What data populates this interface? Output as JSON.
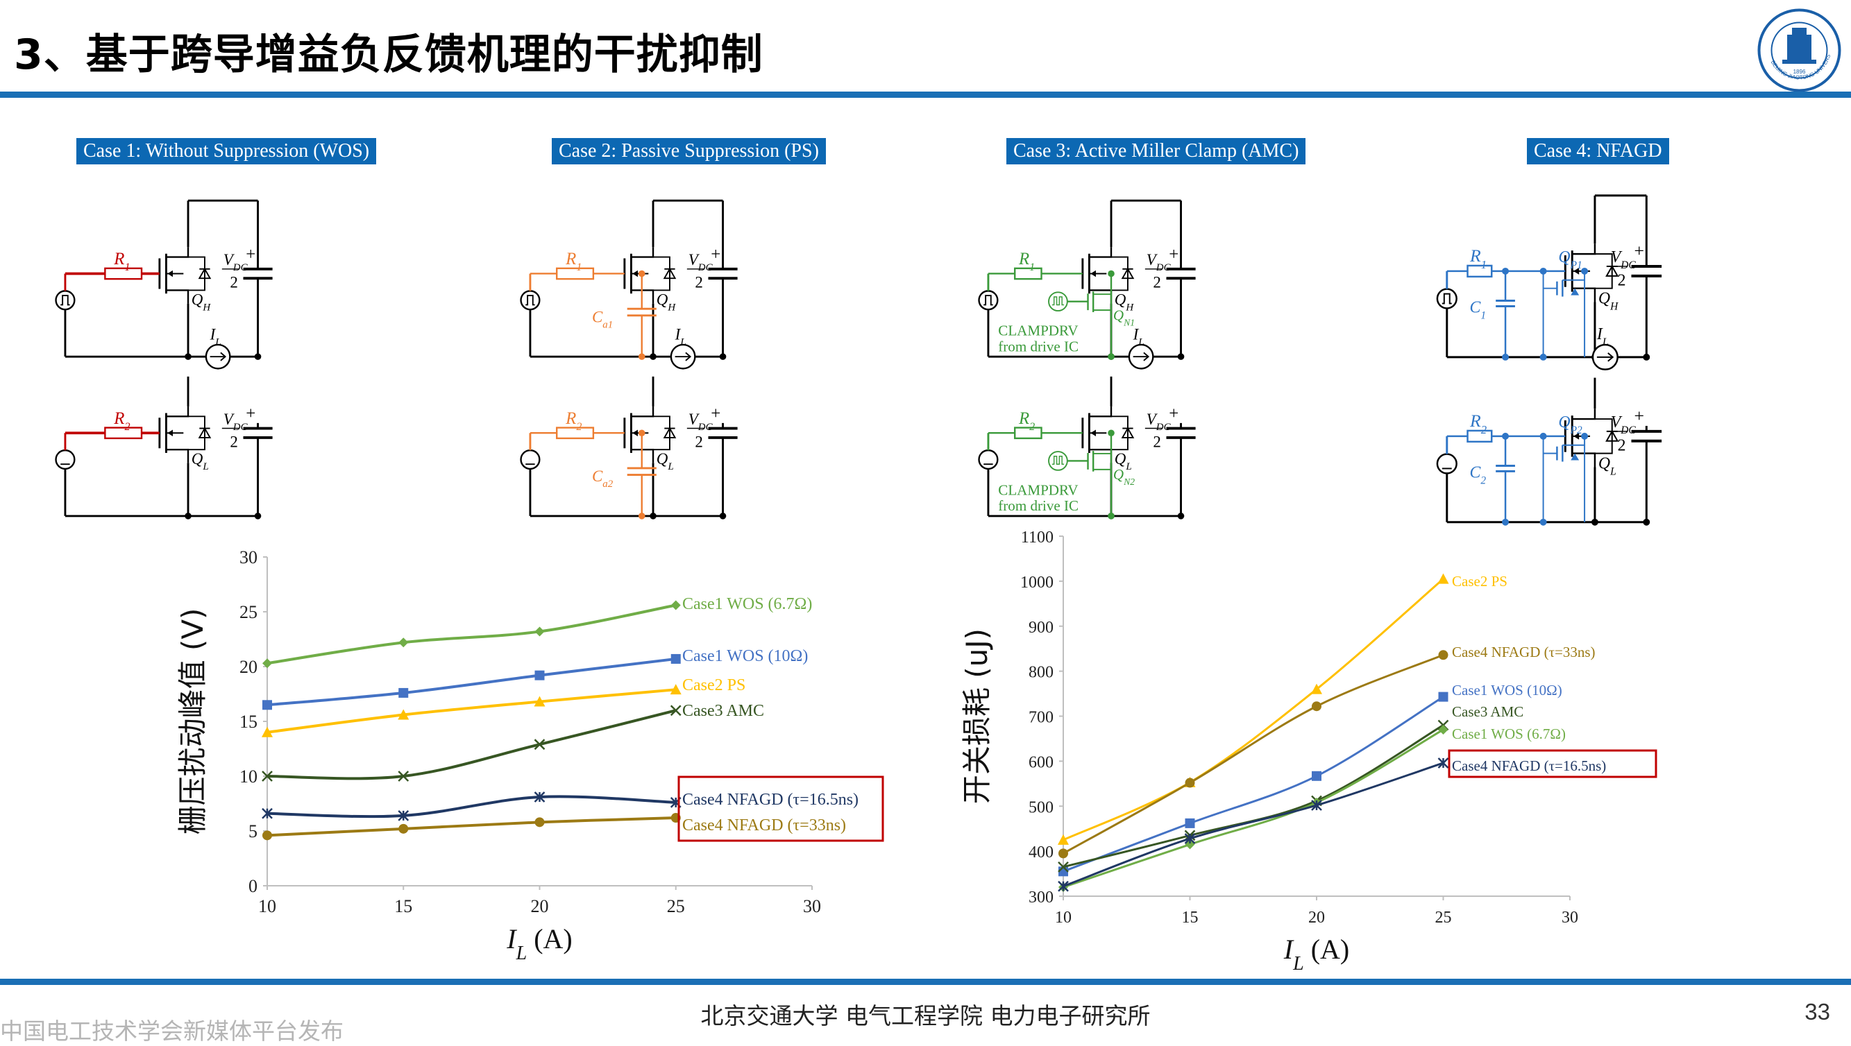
{
  "header": {
    "title": "3、基于跨导增益负反馈机理的干扰抑制"
  },
  "logo": {
    "ring_text": "BEIJING JIAOTONG UNIVERSITY",
    "year": "1896"
  },
  "cases": [
    {
      "label": "Case 1: Without Suppression (WOS)",
      "color": "#c00000"
    },
    {
      "label": "Case 2: Passive Suppression (PS)",
      "color": "#ed7d31"
    },
    {
      "label": "Case 3: Active Miller Clamp (AMC)",
      "color": "#3a9a3a"
    },
    {
      "label": "Case 4: NFAGD",
      "color": "#2e75c6"
    }
  ],
  "circuit_text": {
    "r1": "R",
    "r1_sub": "1",
    "r2": "R",
    "r2_sub": "2",
    "vdc": "V",
    "vdc_sub": "DC",
    "two": "2",
    "plus": "+",
    "qh": "Q",
    "qh_sub": "H",
    "ql": "Q",
    "ql_sub": "L",
    "il": "I",
    "il_sub": "L",
    "ca1": "C",
    "ca1_sub": "a1",
    "ca2": "C",
    "ca2_sub": "a2",
    "qn1": "Q",
    "qn1_sub": "N1",
    "qn2": "Q",
    "qn2_sub": "N2",
    "clamp1": "CLAMPDRV",
    "clamp2": "from drive IC",
    "c1": "C",
    "c1_sub": "1",
    "c2": "C",
    "c2_sub": "2",
    "qp1": "Q",
    "qp1_sub": "P1",
    "qp2": "Q",
    "qp2_sub": "P2"
  },
  "chart_data": [
    {
      "type": "line",
      "ylabel": "栅压扰动峰值 (V)",
      "xlabel": "I",
      "xlabel_sub": "L",
      "xlabel_unit": " (A)",
      "xlim": [
        10,
        30
      ],
      "ylim": [
        0,
        30
      ],
      "xticks": [
        10,
        15,
        20,
        25,
        30
      ],
      "yticks": [
        0,
        5,
        10,
        15,
        20,
        25,
        30
      ],
      "grid": false,
      "series": [
        {
          "name": "Case1 WOS (6.7Ω)",
          "color": "#70ad47",
          "marker": "diamond",
          "x": [
            10,
            15,
            20,
            25
          ],
          "y": [
            20.3,
            22.2,
            23.2,
            25.6
          ]
        },
        {
          "name": "Case1 WOS (10Ω)",
          "color": "#4472c4",
          "marker": "square",
          "x": [
            10,
            15,
            20,
            25
          ],
          "y": [
            16.5,
            17.6,
            19.2,
            20.7
          ]
        },
        {
          "name": "Case2 PS",
          "color": "#ffc000",
          "marker": "triangle",
          "x": [
            10,
            15,
            20,
            25
          ],
          "y": [
            14.0,
            15.6,
            16.8,
            17.9
          ]
        },
        {
          "name": "Case3 AMC",
          "color": "#375623",
          "marker": "x",
          "x": [
            10,
            15,
            20,
            25
          ],
          "y": [
            10.0,
            10.0,
            12.9,
            16.0
          ]
        },
        {
          "name": "Case4 NFAGD (τ=16.5ns)",
          "color": "#203864",
          "marker": "star",
          "x": [
            10,
            15,
            20,
            25
          ],
          "y": [
            6.6,
            6.4,
            8.1,
            7.6
          ]
        },
        {
          "name": "Case4 NFAGD (τ=33ns)",
          "color": "#9c7a14",
          "marker": "circle",
          "x": [
            10,
            15,
            20,
            25
          ],
          "y": [
            4.6,
            5.2,
            5.8,
            6.2
          ]
        }
      ]
    },
    {
      "type": "line",
      "ylabel": "开关损耗 (uJ)",
      "xlabel": "I",
      "xlabel_sub": "L",
      "xlabel_unit": " (A)",
      "xlim": [
        10,
        30
      ],
      "ylim": [
        300,
        1100
      ],
      "xticks": [
        10,
        15,
        20,
        25,
        30
      ],
      "yticks": [
        300,
        400,
        500,
        600,
        700,
        800,
        900,
        1000,
        1100
      ],
      "grid": false,
      "series": [
        {
          "name": "Case2 PS",
          "color": "#ffc000",
          "marker": "triangle",
          "x": [
            10,
            15,
            20,
            25
          ],
          "y": [
            425,
            553,
            760,
            1005
          ]
        },
        {
          "name": "Case4 NFAGD (τ=33ns)",
          "color": "#9c7a14",
          "marker": "circle",
          "x": [
            10,
            15,
            20,
            25
          ],
          "y": [
            395,
            552,
            722,
            836
          ]
        },
        {
          "name": "Case1 WOS (10Ω)",
          "color": "#4472c4",
          "marker": "square",
          "x": [
            10,
            15,
            20,
            25
          ],
          "y": [
            355,
            462,
            567,
            743
          ]
        },
        {
          "name": "Case3 AMC",
          "color": "#375623",
          "marker": "x",
          "x": [
            10,
            15,
            20,
            25
          ],
          "y": [
            365,
            435,
            512,
            680
          ]
        },
        {
          "name": "Case1 WOS (6.7Ω)",
          "color": "#70ad47",
          "marker": "diamond",
          "x": [
            10,
            15,
            20,
            25
          ],
          "y": [
            320,
            415,
            508,
            670
          ]
        },
        {
          "name": "Case4 NFAGD (τ=16.5ns)",
          "color": "#203864",
          "marker": "star",
          "x": [
            10,
            15,
            20,
            25
          ],
          "y": [
            322,
            428,
            502,
            596
          ]
        }
      ]
    }
  ],
  "footer": {
    "center": "北京交通大学  电气工程学院  电力电子研究所",
    "left": "中国电工技术学会新媒体平台发布",
    "page": "33"
  }
}
